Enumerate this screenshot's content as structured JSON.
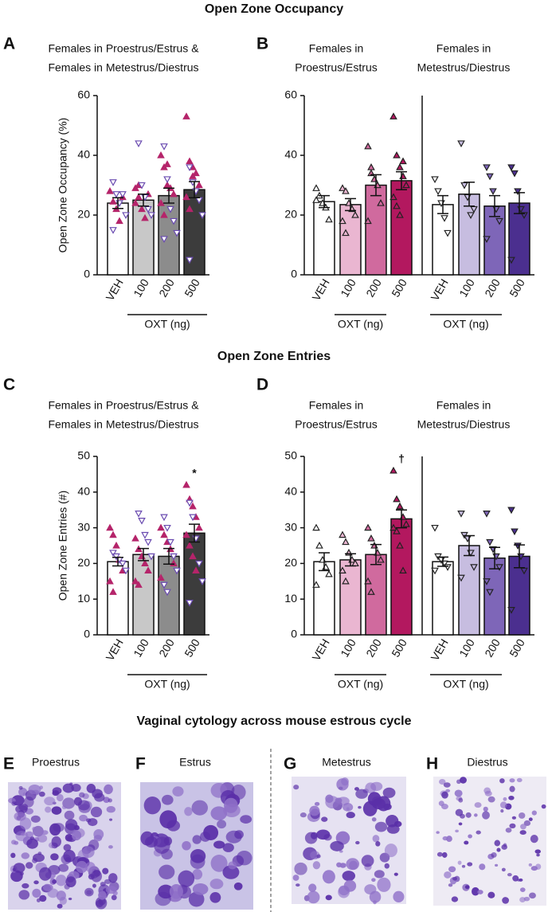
{
  "headings": [
    "Open Zone Occupancy",
    "Open Zone Entries",
    "Vaginal cytology across mouse estrous cycle"
  ],
  "images": [
    {
      "letter": "E",
      "caption": "Proestrus"
    },
    {
      "letter": "F",
      "caption": "Estrus"
    },
    {
      "letter": "G",
      "caption": "Metestrus"
    },
    {
      "letter": "H",
      "caption": "Diestrus"
    }
  ],
  "chart_data": [
    {
      "type": "bar",
      "panel": "A",
      "ylabel": "Open Zone Occupancy  (%)",
      "ylim": [
        0,
        60
      ],
      "yticks": [
        0,
        20,
        40,
        60
      ],
      "groups": [
        {
          "title": [
            "Females in Proestrus/Estrus &",
            "Females in Metestrus/Diestrus"
          ],
          "categories": [
            "VEH",
            "100",
            "200",
            "500"
          ],
          "group_label": "OXT (ng)",
          "values": [
            24,
            25,
            26.5,
            28.5
          ],
          "errors": [
            1.8,
            2,
            2.5,
            2.7
          ],
          "colors": [
            "#ffffff",
            "#c8c8c8",
            "#8c8c8c",
            "#3c3c3c"
          ],
          "annotations": [
            null,
            null,
            null,
            null
          ],
          "point_sets": [
            {
              "marker": "up",
              "stroke": "#b5246a",
              "fill": "#b5246a",
              "values": [
                [
                  28,
                  24.5,
                  22,
                  18,
                  26
                ],
                [
                  29,
                  26,
                  22,
                  19,
                  27,
                  24,
                  30
                ],
                [
                  40,
                  36,
                  30,
                  29,
                  27,
                  24,
                  20,
                  37
                ],
                [
                  53,
                  38,
                  36,
                  34,
                  30,
                  26,
                  22,
                  33
                ]
              ]
            },
            {
              "marker": "down",
              "stroke": "#6a4bb0",
              "fill": "#ffffff",
              "values": [
                [
                  31,
                  27,
                  24,
                  27,
                  20,
                  15
                ],
                [
                  44,
                  30,
                  26,
                  22,
                  20
                ],
                [
                  43,
                  32,
                  22,
                  18,
                  14,
                  12
                ],
                [
                  36,
                  31,
                  28,
                  25,
                  20,
                  5
                ]
              ]
            }
          ]
        }
      ]
    },
    {
      "type": "bar",
      "panel": "B",
      "ylim": [
        0,
        60
      ],
      "yticks": [
        0,
        20,
        40,
        60
      ],
      "groups": [
        {
          "title": [
            "Females in",
            "Proestrus/Estrus"
          ],
          "categories": [
            "VEH",
            "100",
            "200",
            "500"
          ],
          "group_label": "OXT (ng)",
          "values": [
            24.5,
            23.5,
            30,
            31.5
          ],
          "errors": [
            2,
            2,
            3.5,
            3
          ],
          "colors": [
            "#ffffff",
            "#eab6d1",
            "#d06a9e",
            "#b3185f"
          ],
          "annotations": [
            null,
            null,
            null,
            null
          ],
          "point_sets": [
            {
              "marker": "up",
              "stroke": "#222222",
              "fill": [
                "#ffffff",
                "#eab6d1",
                "#d06a9e",
                "#b3185f"
              ],
              "values": [
                [
                  29,
                  26.5,
                  24,
                  22.5,
                  18.5,
                  25
                ],
                [
                  29,
                  28,
                  24,
                  22,
                  20,
                  18,
                  14
                ],
                [
                  43,
                  36,
                  32,
                  30,
                  24,
                  18,
                  34
                ],
                [
                  53,
                  40,
                  36,
                  33,
                  30,
                  26,
                  23,
                  20,
                  38
                ]
              ]
            }
          ]
        },
        {
          "title": [
            "Females in",
            "Metestrus/Diestrus"
          ],
          "categories": [
            "VEH",
            "100",
            "200",
            "500"
          ],
          "group_label": "OXT (ng)",
          "values": [
            23.5,
            27,
            23,
            24
          ],
          "errors": [
            3,
            4,
            3.5,
            3.5
          ],
          "colors": [
            "#ffffff",
            "#c7bde0",
            "#7e66b8",
            "#4b2f8f"
          ],
          "annotations": [
            null,
            null,
            null,
            null
          ],
          "point_sets": [
            {
              "marker": "down",
              "stroke": "#222222",
              "fill": [
                "#ffffff",
                "#c7bde0",
                "#7e66b8",
                "#4b2f8f"
              ],
              "values": [
                [
                  32,
                  28,
                  24,
                  19,
                  14
                ],
                [
                  44,
                  30,
                  26,
                  20,
                  22
                ],
                [
                  36,
                  33,
                  28,
                  22,
                  18,
                  12
                ],
                [
                  36,
                  34,
                  28,
                  22,
                  20,
                  5
                ]
              ]
            }
          ]
        }
      ]
    },
    {
      "type": "bar",
      "panel": "C",
      "ylabel": "Open Zone Entries  (#)",
      "ylim": [
        0,
        50
      ],
      "yticks": [
        0,
        10,
        20,
        30,
        40,
        50
      ],
      "groups": [
        {
          "title": [
            "Females in Proestrus/Estrus &",
            "Females in Metestrus/Diestrus"
          ],
          "categories": [
            "VEH",
            "100",
            "200",
            "500"
          ],
          "group_label": "OXT (ng)",
          "values": [
            20.5,
            22.5,
            22,
            28.5
          ],
          "errors": [
            1.2,
            1.7,
            2.2,
            2.5
          ],
          "colors": [
            "#ffffff",
            "#c8c8c8",
            "#8c8c8c",
            "#3c3c3c"
          ],
          "annotations": [
            null,
            null,
            null,
            "*"
          ],
          "point_sets": [
            {
              "marker": "up",
              "stroke": "#b5246a",
              "fill": "#b5246a",
              "values": [
                [
                  30,
                  28,
                  25,
                  21,
                  18,
                  15,
                  12
                ],
                [
                  27,
                  24,
                  22,
                  20,
                  18,
                  15,
                  14
                ],
                [
                  30,
                  28,
                  26,
                  24,
                  20,
                  16
                ],
                [
                  42,
                  38,
                  36,
                  33,
                  30,
                  28,
                  25,
                  22,
                  18
                ]
              ]
            },
            {
              "marker": "down",
              "stroke": "#6a4bb0",
              "fill": "#ffffff",
              "values": [
                [
                  23,
                  22,
                  21,
                  20,
                  18
                ],
                [
                  34,
                  32,
                  28,
                  26,
                  22
                ],
                [
                  33,
                  30,
                  26,
                  22,
                  18,
                  14,
                  12
                ],
                [
                  37,
                  33,
                  27,
                  20,
                  15,
                  9
                ]
              ]
            }
          ]
        }
      ]
    },
    {
      "type": "bar",
      "panel": "D",
      "ylim": [
        0,
        50
      ],
      "yticks": [
        0,
        10,
        20,
        30,
        40,
        50
      ],
      "groups": [
        {
          "title": [
            "Females in",
            "Proestrus/Estrus"
          ],
          "categories": [
            "VEH",
            "100",
            "200",
            "500"
          ],
          "group_label": "OXT (ng)",
          "values": [
            20.5,
            21,
            22.5,
            32.5
          ],
          "errors": [
            2.5,
            1.7,
            2.8,
            2.5
          ],
          "colors": [
            "#ffffff",
            "#eab6d1",
            "#d06a9e",
            "#b3185f"
          ],
          "annotations": [
            null,
            null,
            null,
            "†"
          ],
          "point_sets": [
            {
              "marker": "up",
              "stroke": "#222222",
              "fill": [
                "#ffffff",
                "#eab6d1",
                "#d06a9e",
                "#b3185f"
              ],
              "values": [
                [
                  30,
                  25,
                  21,
                  19,
                  17,
                  14
                ],
                [
                  28,
                  26,
                  23,
                  21,
                  20,
                  18,
                  15
                ],
                [
                  30,
                  27,
                  25,
                  23,
                  21,
                  15,
                  12
                ],
                [
                  46,
                  38,
                  36,
                  33,
                  31,
                  30,
                  29,
                  25,
                  18
                ]
              ]
            }
          ]
        },
        {
          "title": [
            "Females in",
            "Metestrus/Diestrus"
          ],
          "categories": [
            "VEH",
            "100",
            "200",
            "500"
          ],
          "group_label": "OXT (ng)",
          "values": [
            20.5,
            25,
            21.5,
            22
          ],
          "errors": [
            1.3,
            2.8,
            3,
            3.2
          ],
          "colors": [
            "#ffffff",
            "#c7bde0",
            "#7e66b8",
            "#4b2f8f"
          ],
          "annotations": [
            null,
            null,
            null,
            null
          ],
          "point_sets": [
            {
              "marker": "down",
              "stroke": "#222222",
              "fill": [
                "#ffffff",
                "#c7bde0",
                "#7e66b8",
                "#4b2f8f"
              ],
              "values": [
                [
                  30,
                  22,
                  21,
                  20,
                  19,
                  18
                ],
                [
                  34,
                  28,
                  27,
                  23,
                  19,
                  16
                ],
                [
                  34,
                  26,
                  24,
                  22,
                  19,
                  15,
                  12
                ],
                [
                  35,
                  29,
                  25,
                  22,
                  18,
                  7
                ]
              ]
            }
          ]
        }
      ]
    }
  ]
}
